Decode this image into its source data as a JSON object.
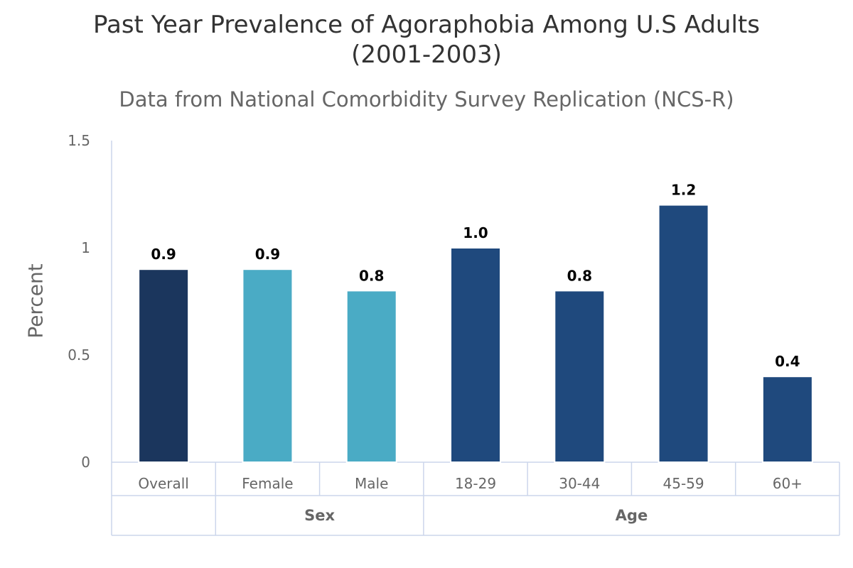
{
  "chart": {
    "title_line1": "Past Year Prevalence of Agoraphobia Among U.S Adults",
    "title_line2": "(2001-2003)",
    "subtitle": "Data from National Comorbidity Survey Replication (NCS-R)",
    "ylabel": "Percent"
  },
  "chart_data": {
    "type": "bar",
    "title": "Past Year Prevalence of Agoraphobia Among U.S Adults (2001-2003)",
    "subtitle": "Data from National Comorbidity Survey Replication (NCS-R)",
    "ylabel": "Percent",
    "xlabel": "",
    "ylim": [
      0,
      1.5
    ],
    "yticks": [
      "0",
      "0.5",
      "1",
      "1.5"
    ],
    "grid": false,
    "legend": "none",
    "categories": [
      "Overall",
      "Female",
      "Male",
      "18-29",
      "30-44",
      "45-59",
      "60+"
    ],
    "groups": [
      {
        "label": "",
        "members": [
          "Overall"
        ]
      },
      {
        "label": "Sex",
        "members": [
          "Female",
          "Male"
        ]
      },
      {
        "label": "Age",
        "members": [
          "18-29",
          "30-44",
          "45-59",
          "60+"
        ]
      }
    ],
    "values": [
      0.9,
      0.9,
      0.8,
      1.0,
      0.8,
      1.2,
      0.4
    ],
    "value_labels": [
      "0.9",
      "0.9",
      "0.8",
      "1.0",
      "0.8",
      "1.2",
      "0.4"
    ],
    "colors": [
      "#1b365d",
      "#4aabc5",
      "#4aabc5",
      "#1f497d",
      "#1f497d",
      "#1f497d",
      "#1f497d"
    ]
  }
}
